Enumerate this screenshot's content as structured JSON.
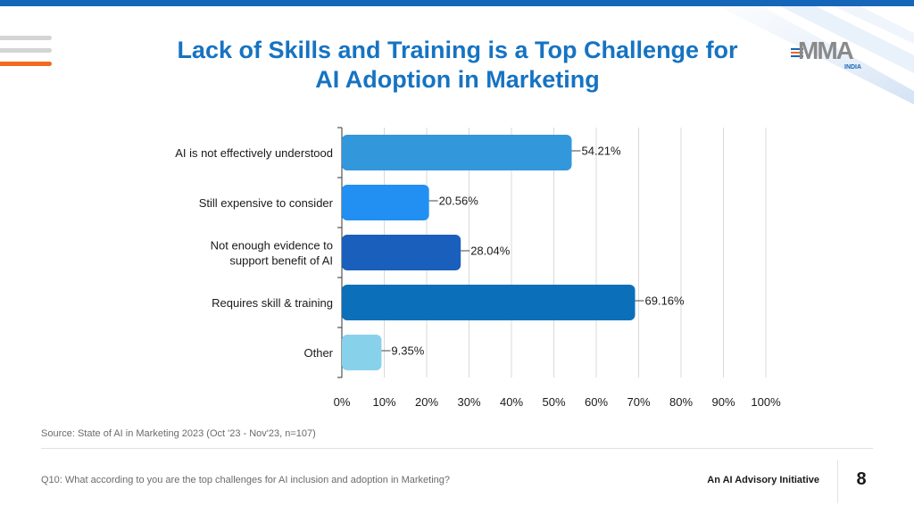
{
  "page": {
    "title": "Lack of Skills and Training is a Top Challenge for AI Adoption in Marketing",
    "title_line1": "Lack of Skills and Training is a Top Challenge for",
    "title_line2": "AI Adoption in Marketing",
    "source": "Source: State of AI in Marketing 2023 (Oct '23 - Nov'23, n=107)",
    "question": "Q10: What according to you are the top challenges for AI inclusion and adoption in Marketing?",
    "footer_tag": "An AI Advisory Initiative",
    "page_number": "8",
    "logo_text": "MMA",
    "logo_sub": "INDIA"
  },
  "colors": {
    "title": "#1673c2",
    "accent_orange": "#f26a21",
    "brand_blue": "#1565b8"
  },
  "chart_data": {
    "type": "bar",
    "orientation": "horizontal",
    "title": "Lack of Skills and Training is a Top Challenge for AI Adoption in Marketing",
    "xlabel": "",
    "ylabel": "",
    "xlim": [
      0,
      100
    ],
    "grid": true,
    "categories": [
      [
        "AI is not effectively understood"
      ],
      [
        "Still expensive to consider"
      ],
      [
        "Not enough evidence to",
        "support benefit of AI"
      ],
      [
        "Requires skill & training"
      ],
      [
        "Other"
      ]
    ],
    "values": [
      54.21,
      20.56,
      28.04,
      69.16,
      9.35
    ],
    "value_labels": [
      "54.21%",
      "20.56%",
      "28.04%",
      "69.16%",
      "9.35%"
    ],
    "bar_colors": [
      "#3297db",
      "#2190f2",
      "#1a5fbc",
      "#0b70b9",
      "#88d1ea"
    ],
    "ticks": [
      0,
      10,
      20,
      30,
      40,
      50,
      60,
      70,
      80,
      90,
      100
    ],
    "tick_labels": [
      "0%",
      "10%",
      "20%",
      "30%",
      "40%",
      "50%",
      "60%",
      "70%",
      "80%",
      "90%",
      "100%"
    ]
  }
}
